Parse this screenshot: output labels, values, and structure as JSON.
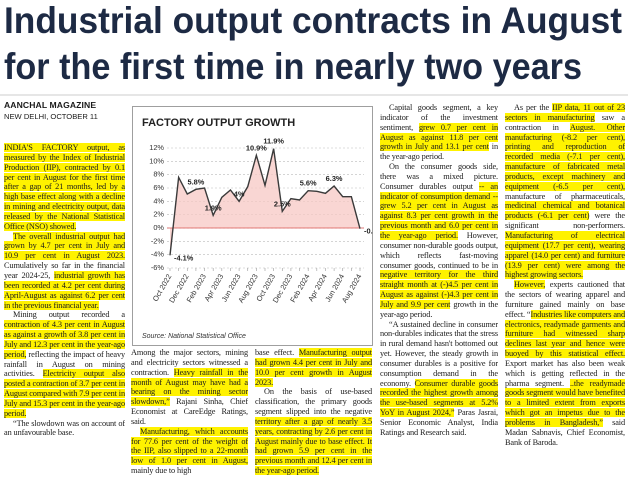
{
  "headline": [
    "Industrial output contracts in August",
    "for the first time in nearly two years"
  ],
  "byline": {
    "author": "AANCHAL MAGAZINE",
    "dateline": "NEW DELHI, OCTOBER 11"
  },
  "chart_data": {
    "type": "line",
    "title": "FACTORY OUTPUT GROWTH",
    "source": "Source: National Statistical Office",
    "categories": [
      "Oct 2022",
      null,
      "Dec 2022",
      null,
      "Feb 2023",
      null,
      "Apr 2023",
      null,
      "Jun 2023",
      null,
      "Aug 2023",
      null,
      "Oct 2023",
      null,
      "Dec 2023",
      null,
      "Feb 2024",
      null,
      "Apr 2024",
      null,
      "Jun 2024",
      null,
      "Aug 2024"
    ],
    "values": [
      -4.1,
      7.6,
      5.1,
      5.8,
      6.0,
      1.9,
      4.6,
      5.7,
      4.0,
      6.2,
      10.9,
      6.4,
      11.9,
      2.5,
      4.4,
      4.2,
      5.6,
      5.5,
      5.2,
      6.3,
      4.7,
      4.7,
      -0.1
    ],
    "value_labels": [
      "-4.1%",
      null,
      null,
      "5.8%",
      null,
      "1.9%",
      null,
      null,
      "4%",
      null,
      "10.9%",
      null,
      "11.9%",
      "2.5%",
      null,
      null,
      "5.6%",
      null,
      null,
      "6.3%",
      null,
      null,
      "-0.1%"
    ],
    "color": "#3a3a3a",
    "area_color": "#f7c8c4",
    "ylim": [
      -6,
      12
    ],
    "yticks": [
      {
        "value": -6,
        "label": "-6%"
      },
      {
        "value": -4,
        "label": "-4%"
      },
      {
        "value": -2,
        "label": "-2%"
      },
      {
        "value": 0,
        "label": "0%"
      },
      {
        "value": 2,
        "label": "2%"
      },
      {
        "value": 4,
        "label": "4%"
      },
      {
        "value": 6,
        "label": "6%"
      },
      {
        "value": 8,
        "label": "8%"
      },
      {
        "value": 10,
        "label": "10%"
      },
      {
        "value": 12,
        "label": "12%"
      }
    ],
    "grid": true
  },
  "columns": [
    [
      [
        {
          "text": "INDIA'S FACTORY output, as measured by the Index of Industrial Production (IIP), contracted by 0.1 per cent in August for the first time after a gap of 21 months, led by a high base effect along with a decline in mining and electricity output, data released by the National Statistical Office (NSO) showed.",
          "highlight": true
        }
      ],
      [
        {
          "text": "The overall industrial output had grown by 4.7 per cent in July and 10.9 per cent in August 2023.",
          "highlight": true
        },
        {
          "text": " Cumulatively so far in the financial year 2024-25, "
        },
        {
          "text": "industrial growth has been recorded at 4.2 per cent during April-August as against 6.2 per cent in the previous financial year.",
          "highlight": true
        }
      ],
      [
        {
          "text": "Mining output recorded a "
        },
        {
          "text": "contraction of 4.3 per cent in August as against a growth of 3.8 per cent in July and 12.3 per cent in the year-ago period,",
          "highlight": true
        },
        {
          "text": " reflecting the impact of heavy rainfall in August on mining activities. "
        },
        {
          "text": "Electricity output also posted a contraction of 3.7 per cent in August compared with 7.9 per cent in July and 15.3 per cent in the year-ago period.",
          "highlight": true
        }
      ],
      [
        {
          "text": "“The slowdown was on account of an unfavourable base."
        }
      ]
    ],
    [
      [
        {
          "text": "Among the major sectors, mining and electricity sectors witnessed a contraction. "
        },
        {
          "text": "Heavy rainfall in the month of August may have had a bearing on the mining sector slowdown,”",
          "highlight": true
        },
        {
          "text": " Rajani Sinha, Chief Economist at CareEdge Ratings, said."
        }
      ],
      [
        {
          "text": "Manufacturing, which accounts for 77.6 per cent of the weight of the IIP, also slipped to a 22-month low of 1.0 per cent in August,",
          "highlight": true
        },
        {
          "text": " mainly due to high"
        }
      ]
    ],
    [
      [
        {
          "text": "base effect. "
        },
        {
          "text": "Manufacturing output had grown 4.4 per cent in July and 10.0 per cent growth in August 2023.",
          "highlight": true
        }
      ],
      [
        {
          "text": "On the basis of use-based classification, the primary goods segment slipped into the negative "
        },
        {
          "text": "territory after a gap of nearly 3.5 years, contracting by 2.6 per cent in August mainly due to base effect. It had grown 5.9 per cent in the previous month and 12.4 per cent in the year-ago period.",
          "highlight": true
        }
      ]
    ],
    [
      [
        {
          "text": "Capital goods segment, a key indicator of the investment sentiment, "
        },
        {
          "text": "grew 0.7 per cent in August as against 11.8 per cent growth in July and 13.1 per cent",
          "highlight": true
        },
        {
          "text": " in the year-ago period."
        }
      ],
      [
        {
          "text": "On the consumer goods side, there was a mixed picture. Consumer durables output "
        },
        {
          "text": "-- an indicator of consumption demand -- grew 5.2 per cent in August as against 8.3 per cent growth in the previous month and 6.0 per cent in the year-ago period.",
          "highlight": true
        },
        {
          "text": " However, consumer non-durable goods output, which reflects fast-moving consumer goods, continued to be in "
        },
        {
          "text": "negative territory for the third straight month at (-)4.5 per cent in August as against (-)4.3 per cent in July and 9.9 per cent",
          "highlight": true
        },
        {
          "text": " growth in the year-ago period."
        }
      ],
      [
        {
          "text": "“A sustained decline in consumer non-durables indicates that the stress in rural demand hasn't bottomed out yet. However, the steady growth in consumer durables is a positive for consumption demand in the economy. "
        },
        {
          "text": "Consumer durable goods recorded the highest growth among the use-based segments at 5.2% YoY in August 2024,”",
          "highlight": true
        },
        {
          "text": " Paras Jasrai, Senior Economic Analyst, India Ratings and Research said."
        }
      ]
    ],
    [
      [
        {
          "text": "As per the "
        },
        {
          "text": "IIP data, 11 out of 23 sectors in manufacturing",
          "highlight": true
        },
        {
          "text": " saw a contraction in "
        },
        {
          "text": "August. Other manufacturing (-8.2 per cent), printing and reproduction of recorded media (-7.1 per cent), manufacture of fabricated metal products, except machinery and equipment (-6.5 per cent),",
          "highlight": true
        },
        {
          "text": " manufacture of pharmaceuticals, "
        },
        {
          "text": "medicinal chemical and botanical products (-6.1 per cent)",
          "highlight": true
        },
        {
          "text": " were the significant non-performers. "
        },
        {
          "text": "Manufacturing of electrical equipment (17.7 per cent), wearing apparel (14.0 per cent) and furniture (13.9 per cent) were among the highest growing sectors.",
          "highlight": true
        }
      ],
      [
        {
          "text": "However,",
          "highlight": true
        },
        {
          "text": " experts cautioned that the sectors of wearing apparel and furniture gained mainly on base effect. “"
        },
        {
          "text": "Industries like computers and electronics, readymade garments and furniture had witnessed sharp declines last year and hence were buoyed by this statistical effect.",
          "highlight": true
        },
        {
          "text": " Export market has also been weak which is getting reflected in the pharma segment. "
        },
        {
          "text": "..the readymade goods segment would have benefited to a limited extent from exports which got an impetus due to the problems in Bangladesh,”",
          "highlight": true
        },
        {
          "text": " said Madan Sabnavis, Chief Economist, Bank of Baroda."
        }
      ]
    ]
  ]
}
